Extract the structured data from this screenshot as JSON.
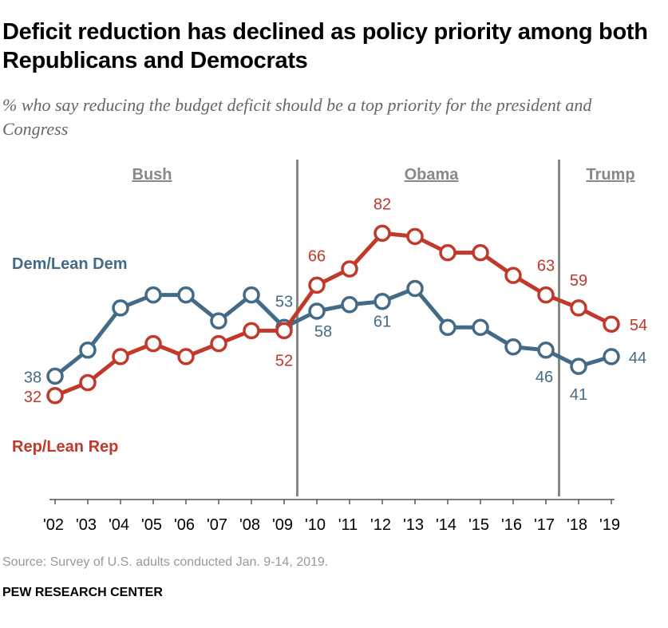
{
  "title": "Deficit reduction has declined as policy priority among both Republicans and Democrats",
  "subtitle": "% who say reducing the budget deficit should be a top priority for the president and Congress",
  "source": "Source: Survey of U.S. adults conducted Jan. 9-14, 2019.",
  "organization": "PEW RESEARCH CENTER",
  "chart_data": {
    "type": "line",
    "categories": [
      "'02",
      "'03",
      "'04",
      "'05",
      "'06",
      "'07",
      "'08",
      "'09",
      "'10",
      "'11",
      "'12",
      "'13",
      "'14",
      "'15",
      "'16",
      "'17",
      "'18",
      "'19"
    ],
    "periods": [
      {
        "label": "Bush",
        "from": "'02",
        "to": "'09"
      },
      {
        "label": "Obama",
        "from": "'10",
        "to": "'17"
      },
      {
        "label": "Trump",
        "from": "'18",
        "to": "'19"
      }
    ],
    "series": [
      {
        "name": "Dem/Lean Dem",
        "color": "#436a87",
        "values": [
          38,
          46,
          59,
          63,
          63,
          55,
          63,
          53,
          58,
          60,
          61,
          65,
          53,
          53,
          47,
          46,
          41,
          44
        ],
        "labeled": [
          "'02",
          "'09",
          "'10",
          "'12",
          "'17",
          "'18",
          "'19"
        ]
      },
      {
        "name": "Rep/Lean Rep",
        "color": "#c0392b",
        "values": [
          32,
          36,
          44,
          48,
          44,
          48,
          52,
          52,
          66,
          71,
          82,
          81,
          76,
          76,
          69,
          63,
          59,
          54
        ],
        "labeled": [
          "'02",
          "'09",
          "'10",
          "'12",
          "'17",
          "'18",
          "'19"
        ]
      }
    ],
    "ylim": [
      0,
      100
    ],
    "grid": false,
    "legend": "inline labels"
  }
}
